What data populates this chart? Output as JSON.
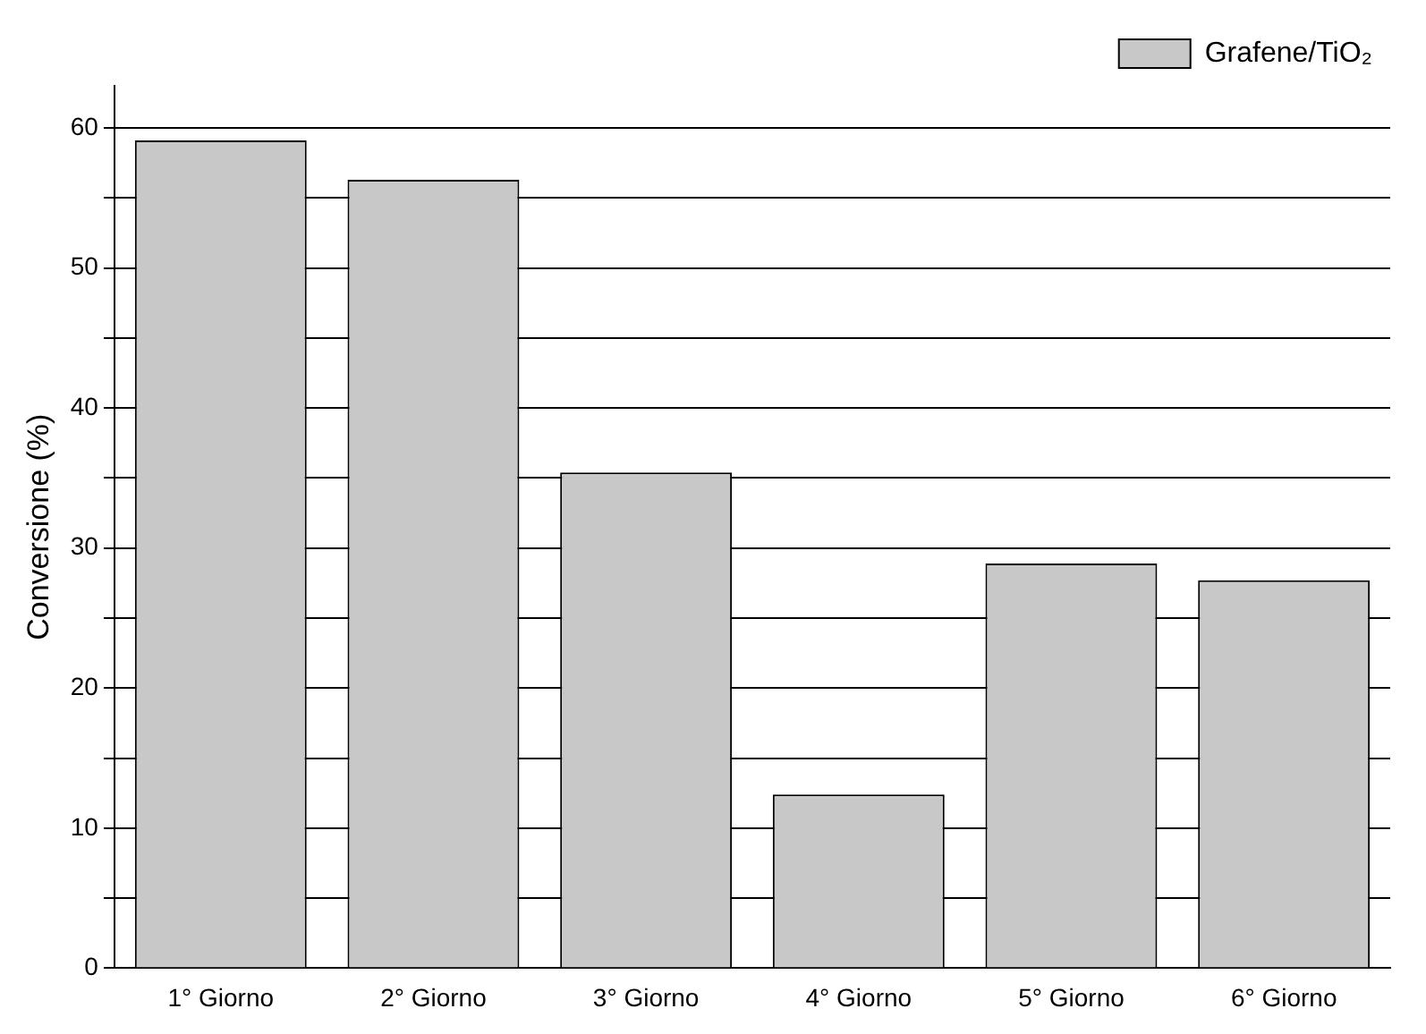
{
  "chart_data": {
    "type": "bar",
    "ylabel": "Conversione (%)",
    "categories": [
      "1° Giorno",
      "2° Giorno",
      "3° Giorno",
      "4° Giorno",
      "5° Giorno",
      "6° Giorno"
    ],
    "series": [
      {
        "name": "Grafene/TiO₂",
        "color": "#c8c8c8",
        "values": [
          59.1,
          56.3,
          35.4,
          12.4,
          28.9,
          27.7
        ]
      }
    ],
    "ylim": [
      0,
      63
    ],
    "yticks": [
      0,
      {
        "value": 5,
        "label": null
      },
      10,
      {
        "value": 15,
        "label": null
      },
      20,
      {
        "value": 25,
        "label": null
      },
      30,
      {
        "value": 35,
        "label": null
      },
      40,
      {
        "value": 45,
        "label": null
      },
      50,
      {
        "value": 55,
        "label": null
      },
      60
    ],
    "grid": "y",
    "legend": "top right"
  }
}
